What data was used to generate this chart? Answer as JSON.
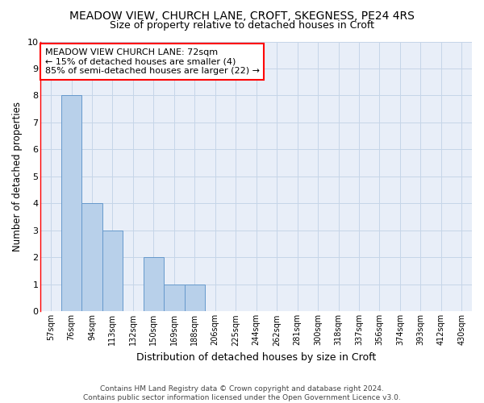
{
  "title": "MEADOW VIEW, CHURCH LANE, CROFT, SKEGNESS, PE24 4RS",
  "subtitle": "Size of property relative to detached houses in Croft",
  "xlabel": "Distribution of detached houses by size in Croft",
  "ylabel": "Number of detached properties",
  "footer_line1": "Contains HM Land Registry data © Crown copyright and database right 2024.",
  "footer_line2": "Contains public sector information licensed under the Open Government Licence v3.0.",
  "categories": [
    "57sqm",
    "76sqm",
    "94sqm",
    "113sqm",
    "132sqm",
    "150sqm",
    "169sqm",
    "188sqm",
    "206sqm",
    "225sqm",
    "244sqm",
    "262sqm",
    "281sqm",
    "300sqm",
    "318sqm",
    "337sqm",
    "356sqm",
    "374sqm",
    "393sqm",
    "412sqm",
    "430sqm"
  ],
  "values": [
    0,
    8,
    4,
    3,
    0,
    2,
    1,
    1,
    0,
    0,
    0,
    0,
    0,
    0,
    0,
    0,
    0,
    0,
    0,
    0,
    0
  ],
  "bar_color": "#b8d0ea",
  "bar_edgecolor": "#6699cc",
  "ylim": [
    0,
    10
  ],
  "yticks": [
    0,
    1,
    2,
    3,
    4,
    5,
    6,
    7,
    8,
    9,
    10
  ],
  "grid_color": "#c5d5e8",
  "background_color": "#e8eef8",
  "annotation_line1": "MEADOW VIEW CHURCH LANE: 72sqm",
  "annotation_line2": "← 15% of detached houses are smaller (4)",
  "annotation_line3": "85% of semi-detached houses are larger (22) →",
  "redline_bin_index": 0,
  "property_bin_index": 1,
  "title_fontsize": 10,
  "subtitle_fontsize": 9
}
